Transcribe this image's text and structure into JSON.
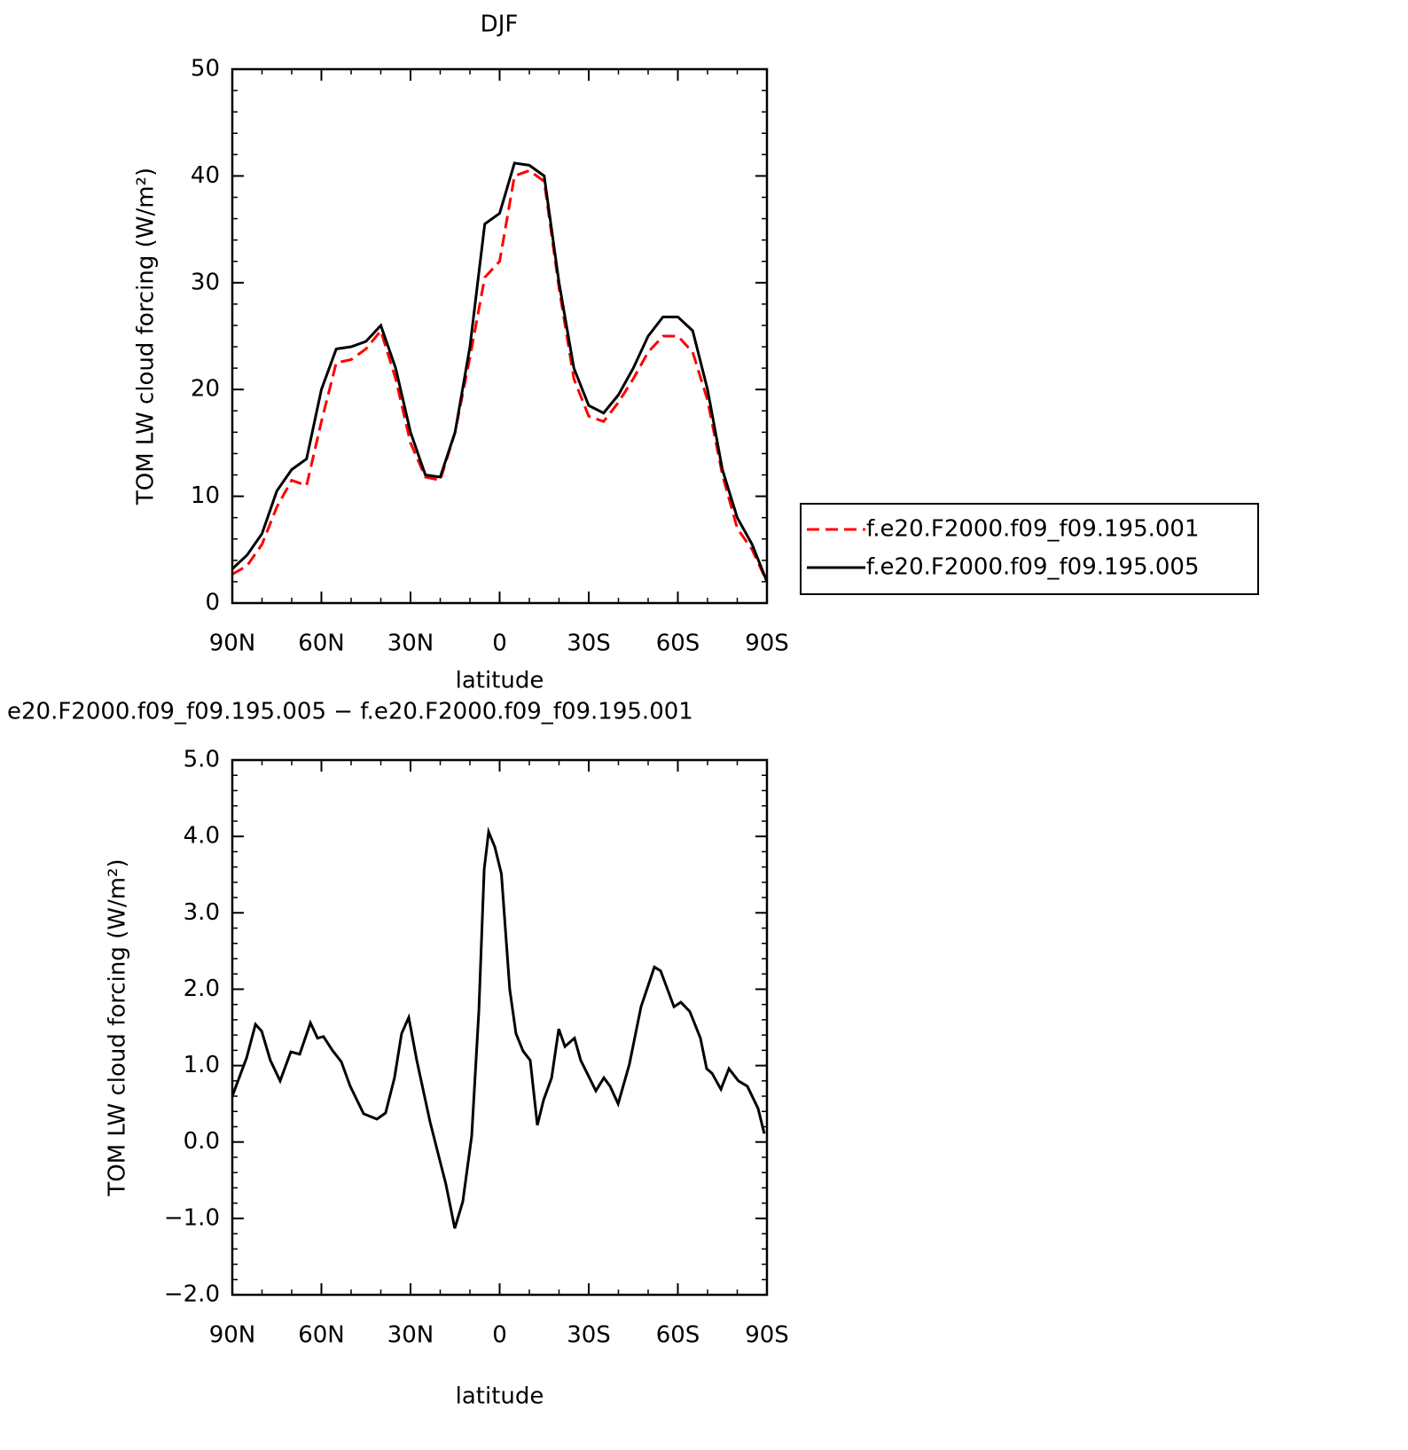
{
  "chart_data": [
    {
      "type": "line",
      "title": "DJF",
      "xlabel": "latitude",
      "ylabel": "TOM LW cloud forcing (W/m²)",
      "x": [
        90,
        85,
        80,
        75,
        70,
        65,
        60,
        55,
        50,
        45,
        40,
        35,
        30,
        25,
        20,
        15,
        10,
        5,
        0,
        -5,
        -10,
        -15,
        -20,
        -25,
        -30,
        -35,
        -40,
        -45,
        -50,
        -55,
        -60,
        -65,
        -70,
        -75,
        -80,
        -85,
        -90
      ],
      "series": [
        {
          "name": "f.e20.F2000.f09_f09.195.001",
          "color": "#ff0000",
          "line_style": "dashed",
          "values": [
            2.7,
            3.5,
            5.5,
            9,
            11.5,
            11,
            17,
            22.5,
            22.8,
            23.8,
            25.5,
            21,
            15,
            11.8,
            11.5,
            16,
            23,
            30.5,
            32,
            40,
            40.5,
            39.5,
            29.5,
            21,
            17.5,
            17,
            18.8,
            21,
            23.5,
            25,
            25,
            23.5,
            19,
            12,
            7,
            5,
            2
          ]
        },
        {
          "name": "f.e20.F2000.f09_f09.195.005",
          "color": "#000000",
          "line_style": "solid",
          "values": [
            3.2,
            4.5,
            6.5,
            10.5,
            12.5,
            13.5,
            20,
            23.8,
            24,
            24.5,
            26,
            22,
            16,
            12,
            11.8,
            16,
            24,
            35.5,
            36.5,
            41.2,
            41,
            40,
            30,
            22,
            18.5,
            17.8,
            19.5,
            22,
            25,
            26.8,
            26.8,
            25.5,
            20,
            12.5,
            8,
            5.5,
            2
          ]
        }
      ],
      "xlim": [
        90,
        -90
      ],
      "xticks": [
        {
          "value": 90,
          "label": "90N"
        },
        {
          "value": 60,
          "label": "60N"
        },
        {
          "value": 30,
          "label": "30N"
        },
        0,
        {
          "value": -30,
          "label": "30S"
        },
        {
          "value": -60,
          "label": "60S"
        },
        {
          "value": -90,
          "label": "90S"
        }
      ],
      "ylim": [
        0,
        50
      ],
      "yticks": [
        0,
        10,
        20,
        30,
        40,
        50
      ],
      "grid": false,
      "legend": "right"
    },
    {
      "type": "line",
      "title": "e20.F2000.f09_f09.195.005 − f.e20.F2000.f09_f09.195.001",
      "xlabel": "latitude",
      "ylabel": "TOM LW cloud forcing (W/m²)",
      "x": [
        90,
        85.2,
        82.2,
        80.1,
        77.2,
        73.9,
        70.3,
        67.3,
        63.7,
        61.3,
        59.3,
        56.3,
        53.3,
        50.3,
        45.8,
        41.3,
        38.4,
        35.4,
        33.0,
        30.6,
        27.9,
        23.4,
        20.4,
        18.1,
        15.1,
        12.4,
        9.4,
        7.0,
        5.2,
        3.7,
        1.6,
        -0.6,
        -3.4,
        -5.5,
        -7.9,
        -10.3,
        -12.7,
        -14.8,
        -17.5,
        -19.9,
        -22.0,
        -25.2,
        -27.3,
        -32.4,
        -35.1,
        -37.2,
        -39.9,
        -43.7,
        -47.6,
        -52.1,
        -54.2,
        -58.7,
        -61.0,
        -64.0,
        -67.6,
        -69.7,
        -71.5,
        -74.5,
        -77.2,
        -80.4,
        -83.4,
        -87.0,
        -89.1
      ],
      "series": [
        {
          "color": "#000000",
          "line_style": "solid",
          "values": [
            0.6,
            1.1,
            1.54,
            1.45,
            1.07,
            0.8,
            1.18,
            1.15,
            1.56,
            1.36,
            1.38,
            1.2,
            1.05,
            0.73,
            0.37,
            0.3,
            0.38,
            0.84,
            1.42,
            1.63,
            1.07,
            0.26,
            -0.2,
            -0.55,
            -1.13,
            -0.78,
            0.08,
            1.71,
            3.57,
            4.06,
            3.86,
            3.51,
            2.0,
            1.42,
            1.19,
            1.07,
            0.22,
            0.55,
            0.84,
            1.48,
            1.25,
            1.36,
            1.07,
            0.67,
            0.84,
            0.73,
            0.5,
            1.02,
            1.77,
            2.29,
            2.24,
            1.77,
            1.83,
            1.71,
            1.36,
            0.96,
            0.9,
            0.69,
            0.96,
            0.8,
            0.73,
            0.44,
            0.11
          ]
        }
      ],
      "xlim": [
        90,
        -90
      ],
      "xticks": [
        {
          "value": 90,
          "label": "90N"
        },
        {
          "value": 60,
          "label": "60N"
        },
        {
          "value": 30,
          "label": "30N"
        },
        0,
        {
          "value": -30,
          "label": "30S"
        },
        {
          "value": -60,
          "label": "60S"
        },
        {
          "value": -90,
          "label": "90S"
        }
      ],
      "ylim": [
        -2,
        5
      ],
      "yticks": [
        {
          "value": -2,
          "label": "−2.0"
        },
        {
          "value": -1,
          "label": "−1.0"
        },
        {
          "value": 0,
          "label": "0.0"
        },
        {
          "value": 1,
          "label": "1.0"
        },
        {
          "value": 2,
          "label": "2.0"
        },
        {
          "value": 3,
          "label": "3.0"
        },
        {
          "value": 4,
          "label": "4.0"
        },
        {
          "value": 5,
          "label": "5.0"
        }
      ],
      "grid": false
    }
  ]
}
